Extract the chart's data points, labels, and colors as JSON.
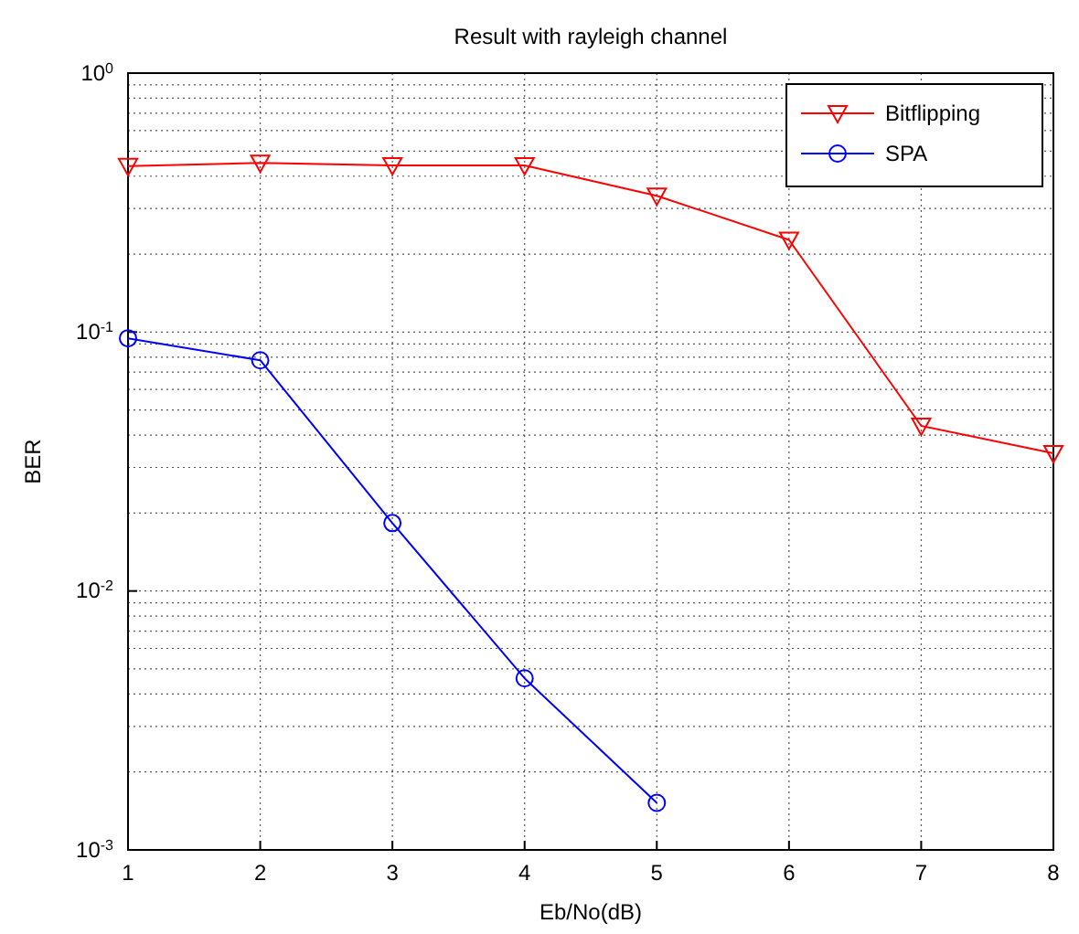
{
  "chart_data": {
    "type": "line",
    "title": "Result with rayleigh channel",
    "xlabel": "Eb/No(dB)",
    "ylabel": "BER",
    "log": "y",
    "grid": true,
    "legend": "top right",
    "line_style": "solid",
    "x": [
      1,
      2,
      3,
      4,
      5,
      6,
      7,
      8
    ],
    "xlim": [
      1,
      8
    ],
    "xticks": [
      1,
      2,
      3,
      4,
      5,
      6,
      7,
      8
    ],
    "ylim": [
      0.001,
      1
    ],
    "yticks": [
      {
        "value": 0.001,
        "label": "10$^{-3}$"
      },
      {
        "value": 0.01,
        "label": "10$^{-2}$"
      },
      {
        "value": 0.1,
        "label": "10$^{-1}$"
      },
      {
        "value": 1,
        "label": "10$^{0}$"
      }
    ],
    "series": [
      {
        "name": "Bitflipping",
        "color": "#ff0000",
        "marker": "triangle",
        "values": [
          0.437,
          0.45,
          0.44,
          0.44,
          0.336,
          0.227,
          0.0434,
          0.034
        ]
      },
      {
        "name": "SPA",
        "color": "#0000ff",
        "marker": "circle",
        "values": [
          0.0946,
          0.0778,
          0.0183,
          0.0046,
          0.00152,
          null,
          null,
          null
        ]
      }
    ]
  }
}
